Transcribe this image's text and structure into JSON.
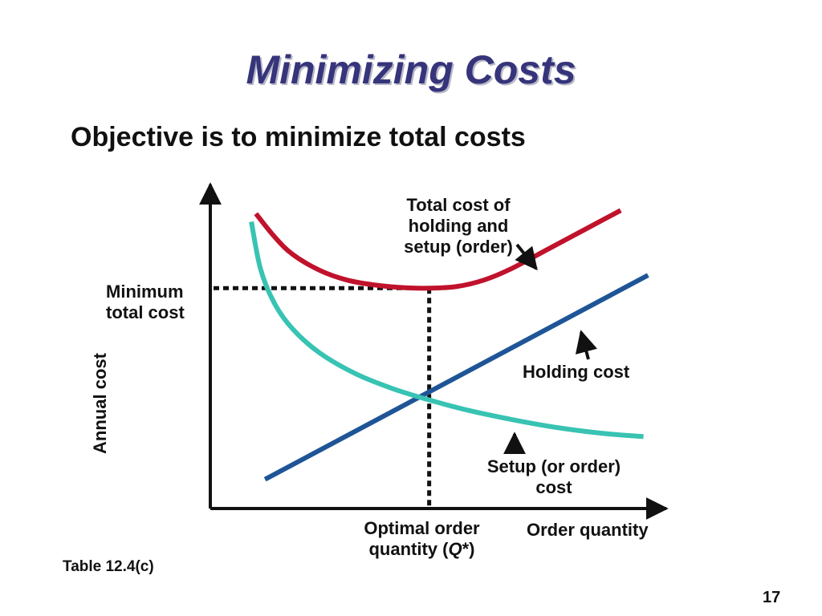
{
  "slide": {
    "title": "Minimizing Costs",
    "subtitle": "Objective is to minimize total costs",
    "table_ref": "Table 12.4(c)",
    "page_number": "17"
  },
  "colors": {
    "title": "#36347a",
    "total_cost": "#c0122c",
    "holding_cost": "#1f5597",
    "setup_cost": "#38c3b3",
    "axis": "#111111",
    "guides": "#111111"
  },
  "chart_data": {
    "type": "line",
    "title": "",
    "xlabel": "Order quantity",
    "ylabel": "Annual cost",
    "xlim": [
      0,
      10
    ],
    "ylim": [
      0,
      10
    ],
    "grid": false,
    "legend": "none",
    "optimum": {
      "x": 4.8,
      "y": 6.8
    },
    "series": [
      {
        "name": "Total cost of holding and setup (order)",
        "key": "total",
        "x": [
          1.0,
          1.4,
          1.8,
          2.4,
          3.0,
          3.6,
          4.2,
          4.8,
          5.4,
          6.0,
          6.6,
          7.4,
          8.2,
          9.0
        ],
        "y": [
          9.1,
          8.4,
          7.85,
          7.35,
          7.05,
          6.9,
          6.82,
          6.8,
          6.85,
          7.05,
          7.4,
          8.0,
          8.6,
          9.2
        ]
      },
      {
        "name": "Holding cost",
        "key": "holding",
        "x": [
          1.2,
          9.6
        ],
        "y": [
          0.9,
          7.2
        ]
      },
      {
        "name": "Setup (or order) cost",
        "key": "setup",
        "x": [
          0.9,
          1.1,
          1.4,
          1.8,
          2.4,
          3.2,
          4.0,
          4.8,
          5.6,
          6.6,
          7.6,
          8.6,
          9.5
        ],
        "y": [
          8.85,
          7.4,
          6.35,
          5.55,
          4.8,
          4.15,
          3.7,
          3.35,
          3.05,
          2.75,
          2.5,
          2.32,
          2.22
        ]
      }
    ],
    "annotations": {
      "min_total_cost": [
        "Minimum",
        "total cost"
      ],
      "total_cost": [
        "Total cost of",
        "holding and",
        "setup (order)"
      ],
      "holding_cost": "Holding cost",
      "setup_cost": [
        "Setup (or order)",
        "cost"
      ],
      "optimal_q_prefix": "Optimal order",
      "optimal_q_line2": "quantity (",
      "optimal_q_symbol": "Q",
      "optimal_q_suffix": "*)"
    }
  }
}
